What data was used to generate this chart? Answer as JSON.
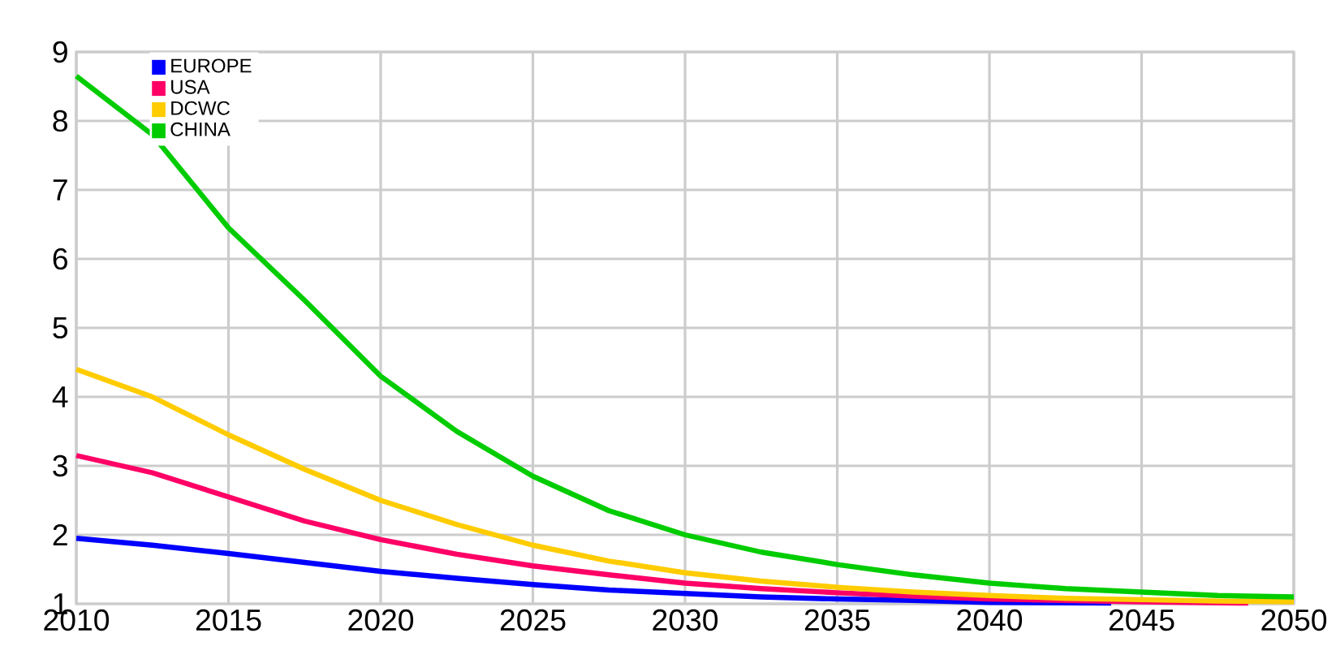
{
  "chart_data": {
    "type": "line",
    "xlim": [
      2010,
      2050
    ],
    "ylim": [
      1,
      9
    ],
    "xticks": [
      2010,
      2015,
      2020,
      2025,
      2030,
      2035,
      2040,
      2045,
      2050
    ],
    "yticks": [
      1,
      2,
      3,
      4,
      5,
      6,
      7,
      8,
      9
    ],
    "grid": true,
    "legend": "top left",
    "line_style": "solid",
    "marker": "none",
    "series": [
      {
        "name": "EUROPE",
        "color": "#0000ff",
        "x": [
          2010,
          2012.5,
          2015,
          2017.5,
          2020,
          2022.5,
          2025,
          2027.5,
          2030,
          2032.5,
          2035,
          2037.5,
          2040,
          2044
        ],
        "values": [
          1.95,
          1.85,
          1.73,
          1.6,
          1.47,
          1.37,
          1.28,
          1.2,
          1.15,
          1.1,
          1.07,
          1.05,
          1.02,
          1.01
        ]
      },
      {
        "name": "USA",
        "color": "#ff0066",
        "x": [
          2010,
          2012.5,
          2015,
          2017.5,
          2020,
          2022.5,
          2025,
          2027.5,
          2030,
          2032.5,
          2035,
          2037.5,
          2040,
          2042.5,
          2045,
          2048.5
        ],
        "values": [
          3.15,
          2.9,
          2.55,
          2.2,
          1.93,
          1.72,
          1.55,
          1.42,
          1.3,
          1.22,
          1.16,
          1.11,
          1.07,
          1.05,
          1.03,
          1.01
        ]
      },
      {
        "name": "DCWC",
        "color": "#ffcc00",
        "x": [
          2010,
          2012.5,
          2015,
          2017.5,
          2020,
          2022.5,
          2025,
          2027.5,
          2030,
          2032.5,
          2035,
          2037.5,
          2040,
          2042.5,
          2045,
          2047.5,
          2050
        ],
        "values": [
          4.4,
          4.0,
          3.45,
          2.95,
          2.5,
          2.15,
          1.85,
          1.62,
          1.45,
          1.33,
          1.24,
          1.17,
          1.12,
          1.08,
          1.06,
          1.04,
          1.03
        ]
      },
      {
        "name": "CHINA",
        "color": "#00cc00",
        "x": [
          2010,
          2012.5,
          2015,
          2017.5,
          2020,
          2022.5,
          2025,
          2027.5,
          2030,
          2032.5,
          2035,
          2037.5,
          2040,
          2042.5,
          2045,
          2047.5,
          2050
        ],
        "values": [
          8.65,
          7.8,
          6.45,
          5.4,
          4.3,
          3.5,
          2.85,
          2.35,
          2.0,
          1.75,
          1.57,
          1.42,
          1.3,
          1.22,
          1.17,
          1.12,
          1.1
        ]
      }
    ]
  }
}
